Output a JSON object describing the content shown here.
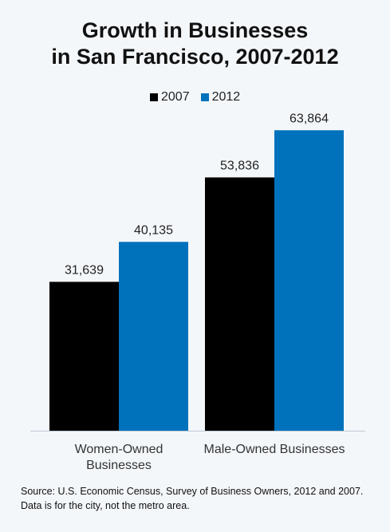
{
  "title_line1": "Growth in Businesses",
  "title_line2": "in San Francisco, 2007-2012",
  "source": "Source: U.S. Economic Census, Survey of Business Owners, 2012 and 2007. Data is for the city, not the metro area.",
  "colors": {
    "2007": "#000000",
    "2012": "#0072bc",
    "background": "#f4f7fa"
  },
  "chart_data": {
    "type": "bar",
    "title": "Growth in Businesses in San Francisco, 2007-2012",
    "categories": [
      "Women-Owned Businesses",
      "Male-Owned Businesses"
    ],
    "category_lines": [
      [
        "Women-Owned",
        "Businesses"
      ],
      [
        "Male-Owned Businesses"
      ]
    ],
    "series": [
      {
        "name": "2007",
        "values": [
          31639,
          53836
        ],
        "labels": [
          "31,639",
          "53,836"
        ]
      },
      {
        "name": "2012",
        "values": [
          40135,
          63864
        ],
        "labels": [
          "40,135",
          "63,864"
        ]
      }
    ],
    "ylim": [
      0,
      72900
    ],
    "legend_position": "top-center",
    "grid": false,
    "xlabel": "",
    "ylabel": ""
  }
}
